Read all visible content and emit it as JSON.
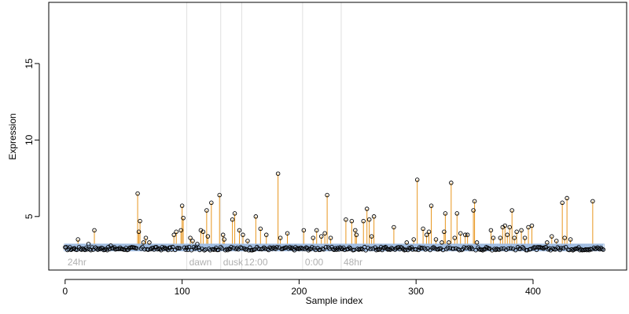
{
  "chart_data": {
    "type": "scatter",
    "title": "",
    "xlabel": "Sample index",
    "ylabel": "Expression",
    "xlim": [
      -14,
      480
    ],
    "ylim": [
      1.5,
      19
    ],
    "xticks": [
      0,
      100,
      200,
      300,
      400
    ],
    "yticks": [
      5,
      10,
      15
    ],
    "grid": "vertical separator lines only",
    "baseline": 2.9,
    "baseline_band": [
      2.75,
      3.2
    ],
    "separators": [
      {
        "x": 104,
        "label": "24hr"
      },
      {
        "x": 133,
        "label": "dawn"
      },
      {
        "x": 151,
        "label": "dusk"
      },
      {
        "x": 203,
        "label": "12:00"
      },
      {
        "x": 236,
        "label": "0:00"
      }
    ],
    "segment_labels_after_last": "48hr",
    "colors": {
      "stem": "#e8961e",
      "band_box": "#9ab8df",
      "point": "#000000",
      "separator": "#e0e0e0",
      "segment_label": "#b0b0b0",
      "axis": "#000000"
    },
    "n_points": 461,
    "peaks": [
      {
        "x": 11,
        "y": 3.5
      },
      {
        "x": 20,
        "y": 3.2
      },
      {
        "x": 25,
        "y": 4.1
      },
      {
        "x": 39,
        "y": 3.1
      },
      {
        "x": 62,
        "y": 6.5
      },
      {
        "x": 63,
        "y": 4.0
      },
      {
        "x": 64,
        "y": 4.7
      },
      {
        "x": 67,
        "y": 3.3
      },
      {
        "x": 69,
        "y": 3.6
      },
      {
        "x": 72,
        "y": 3.3
      },
      {
        "x": 93,
        "y": 3.8
      },
      {
        "x": 95,
        "y": 4.0
      },
      {
        "x": 99,
        "y": 4.1
      },
      {
        "x": 100,
        "y": 5.7
      },
      {
        "x": 101,
        "y": 4.9
      },
      {
        "x": 107,
        "y": 3.6
      },
      {
        "x": 109,
        "y": 3.4
      },
      {
        "x": 113,
        "y": 3.2
      },
      {
        "x": 116,
        "y": 4.1
      },
      {
        "x": 118,
        "y": 4.0
      },
      {
        "x": 121,
        "y": 5.4
      },
      {
        "x": 122,
        "y": 3.7
      },
      {
        "x": 125,
        "y": 5.9
      },
      {
        "x": 132,
        "y": 6.4
      },
      {
        "x": 135,
        "y": 3.8
      },
      {
        "x": 136,
        "y": 3.5
      },
      {
        "x": 143,
        "y": 4.8
      },
      {
        "x": 145,
        "y": 5.2
      },
      {
        "x": 149,
        "y": 4.1
      },
      {
        "x": 152,
        "y": 3.8
      },
      {
        "x": 156,
        "y": 3.4
      },
      {
        "x": 163,
        "y": 5.0
      },
      {
        "x": 167,
        "y": 4.2
      },
      {
        "x": 172,
        "y": 3.8
      },
      {
        "x": 182,
        "y": 7.8
      },
      {
        "x": 184,
        "y": 3.6
      },
      {
        "x": 190,
        "y": 3.9
      },
      {
        "x": 204,
        "y": 4.1
      },
      {
        "x": 212,
        "y": 3.6
      },
      {
        "x": 215,
        "y": 4.1
      },
      {
        "x": 219,
        "y": 3.7
      },
      {
        "x": 222,
        "y": 3.9
      },
      {
        "x": 224,
        "y": 6.4
      },
      {
        "x": 227,
        "y": 3.6
      },
      {
        "x": 240,
        "y": 4.8
      },
      {
        "x": 245,
        "y": 4.7
      },
      {
        "x": 248,
        "y": 4.1
      },
      {
        "x": 249,
        "y": 3.8
      },
      {
        "x": 255,
        "y": 4.7
      },
      {
        "x": 258,
        "y": 5.5
      },
      {
        "x": 260,
        "y": 4.8
      },
      {
        "x": 262,
        "y": 3.7
      },
      {
        "x": 264,
        "y": 5.0
      },
      {
        "x": 281,
        "y": 4.3
      },
      {
        "x": 292,
        "y": 3.3
      },
      {
        "x": 298,
        "y": 3.5
      },
      {
        "x": 301,
        "y": 7.4
      },
      {
        "x": 306,
        "y": 4.2
      },
      {
        "x": 309,
        "y": 3.8
      },
      {
        "x": 311,
        "y": 4.0
      },
      {
        "x": 313,
        "y": 5.7
      },
      {
        "x": 317,
        "y": 3.5
      },
      {
        "x": 322,
        "y": 3.3
      },
      {
        "x": 324,
        "y": 4.0
      },
      {
        "x": 325,
        "y": 5.2
      },
      {
        "x": 328,
        "y": 3.3
      },
      {
        "x": 330,
        "y": 7.2
      },
      {
        "x": 333,
        "y": 3.6
      },
      {
        "x": 335,
        "y": 5.2
      },
      {
        "x": 338,
        "y": 3.9
      },
      {
        "x": 342,
        "y": 3.8
      },
      {
        "x": 344,
        "y": 3.8
      },
      {
        "x": 349,
        "y": 5.4
      },
      {
        "x": 350,
        "y": 6.0
      },
      {
        "x": 352,
        "y": 3.3
      },
      {
        "x": 364,
        "y": 4.1
      },
      {
        "x": 366,
        "y": 3.6
      },
      {
        "x": 372,
        "y": 3.6
      },
      {
        "x": 374,
        "y": 4.3
      },
      {
        "x": 376,
        "y": 4.4
      },
      {
        "x": 378,
        "y": 3.8
      },
      {
        "x": 380,
        "y": 4.3
      },
      {
        "x": 382,
        "y": 5.4
      },
      {
        "x": 384,
        "y": 3.6
      },
      {
        "x": 386,
        "y": 4.0
      },
      {
        "x": 390,
        "y": 4.1
      },
      {
        "x": 393,
        "y": 3.6
      },
      {
        "x": 396,
        "y": 4.3
      },
      {
        "x": 399,
        "y": 4.4
      },
      {
        "x": 412,
        "y": 3.3
      },
      {
        "x": 416,
        "y": 3.7
      },
      {
        "x": 420,
        "y": 3.4
      },
      {
        "x": 425,
        "y": 5.9
      },
      {
        "x": 427,
        "y": 3.6
      },
      {
        "x": 429,
        "y": 6.2
      },
      {
        "x": 432,
        "y": 3.5
      },
      {
        "x": 451,
        "y": 6.0
      }
    ]
  }
}
